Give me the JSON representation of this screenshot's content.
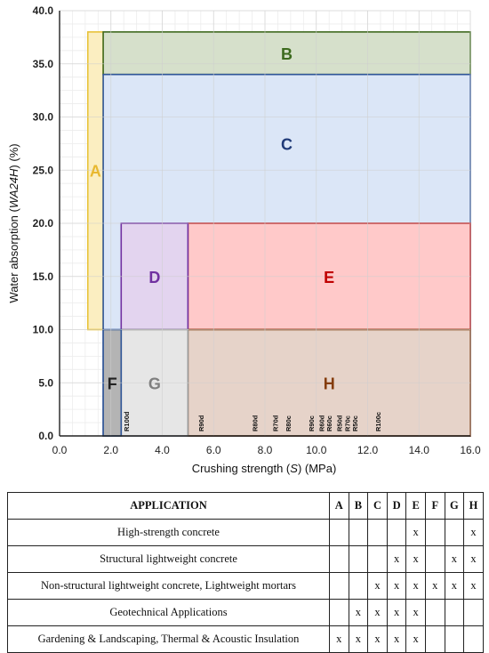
{
  "chart_data": {
    "type": "region-map",
    "xlabel_main": "Crushing strength (",
    "xlabel_var": "S",
    "xlabel_unit": ") (MPa)",
    "ylabel_main": "Water absorption (",
    "ylabel_var": "WA24H",
    "ylabel_unit": ") (%)",
    "xlim": [
      0,
      16
    ],
    "ylim": [
      0,
      40
    ],
    "x_ticks": [
      "0.0",
      "2.0",
      "4.0",
      "6.0",
      "8.0",
      "10.0",
      "12.0",
      "14.0",
      "16.0"
    ],
    "y_ticks": [
      "0.0",
      "5.0",
      "10.0",
      "15.0",
      "20.0",
      "25.0",
      "30.0",
      "35.0",
      "40.0"
    ],
    "grid": true,
    "regions": [
      {
        "label": "A",
        "x": [
          1.1,
          1.7
        ],
        "y": [
          10,
          38
        ],
        "fill": "#fbeec1",
        "stroke": "#e8c33a",
        "text": "#e8b830"
      },
      {
        "label": "B",
        "x": [
          1.7,
          16
        ],
        "y": [
          34,
          38
        ],
        "fill": "#d6e0cb",
        "stroke": "#3f6a1f",
        "text": "#3c6a1e"
      },
      {
        "label": "C",
        "x": [
          1.7,
          16
        ],
        "y": [
          0,
          34
        ],
        "fill": "#dbe6f7",
        "stroke": "#2f5597",
        "text": "#1f3a78"
      },
      {
        "label": "E",
        "x": [
          5,
          16
        ],
        "y": [
          10,
          20
        ],
        "fill": "#ffc9c9",
        "stroke": "#c01818",
        "text": "#c00000"
      },
      {
        "label": "D",
        "x": [
          2.4,
          5
        ],
        "y": [
          10,
          20
        ],
        "fill": "#e3d4ef",
        "stroke": "#7030a0",
        "text": "#7030a0"
      },
      {
        "label": "H",
        "x": [
          5,
          16
        ],
        "y": [
          0,
          10
        ],
        "fill": "#e6d3c9",
        "stroke": "#843c0c",
        "text": "#843c0c"
      },
      {
        "label": "G",
        "x": [
          2.4,
          5
        ],
        "y": [
          0,
          10
        ],
        "fill": "#e6e6e6",
        "stroke": "#9a9a9a",
        "text": "#7f7f7f"
      },
      {
        "label": "F",
        "x": [
          1.7,
          2.4
        ],
        "y": [
          0,
          10
        ],
        "fill": "#b4b4b4",
        "stroke": "#2f5597",
        "text": "#222222"
      }
    ],
    "samples": [
      {
        "label": "R100d",
        "x": 2.6
      },
      {
        "label": "R90d",
        "x": 5.5
      },
      {
        "label": "R80d",
        "x": 7.6
      },
      {
        "label": "R70d",
        "x": 8.4
      },
      {
        "label": "R80c",
        "x": 8.9
      },
      {
        "label": "R90c",
        "x": 9.8
      },
      {
        "label": "R60d",
        "x": 10.2
      },
      {
        "label": "R60c",
        "x": 10.5
      },
      {
        "label": "R50d",
        "x": 10.9
      },
      {
        "label": "R70c",
        "x": 11.2
      },
      {
        "label": "R50c",
        "x": 11.5
      },
      {
        "label": "R100c",
        "x": 12.4
      }
    ]
  },
  "table": {
    "header": [
      "APPLICATION",
      "A",
      "B",
      "C",
      "D",
      "E",
      "F",
      "G",
      "H"
    ],
    "rows": [
      {
        "name": "High-strength concrete",
        "marks": [
          "",
          "",
          "",
          "",
          "x",
          "",
          "",
          "x"
        ]
      },
      {
        "name": "Structural lightweight concrete",
        "marks": [
          "",
          "",
          "",
          "x",
          "x",
          "",
          "x",
          "x"
        ]
      },
      {
        "name": "Non-structural lightweight concrete, Lightweight mortars",
        "marks": [
          "",
          "",
          "x",
          "x",
          "x",
          "x",
          "x",
          "x"
        ]
      },
      {
        "name": "Geotechnical Applications",
        "marks": [
          "",
          "x",
          "x",
          "x",
          "x",
          "",
          "",
          ""
        ]
      },
      {
        "name": "Gardening & Landscaping, Thermal & Acoustic Insulation",
        "marks": [
          "x",
          "x",
          "x",
          "x",
          "x",
          "",
          "",
          ""
        ]
      }
    ]
  }
}
